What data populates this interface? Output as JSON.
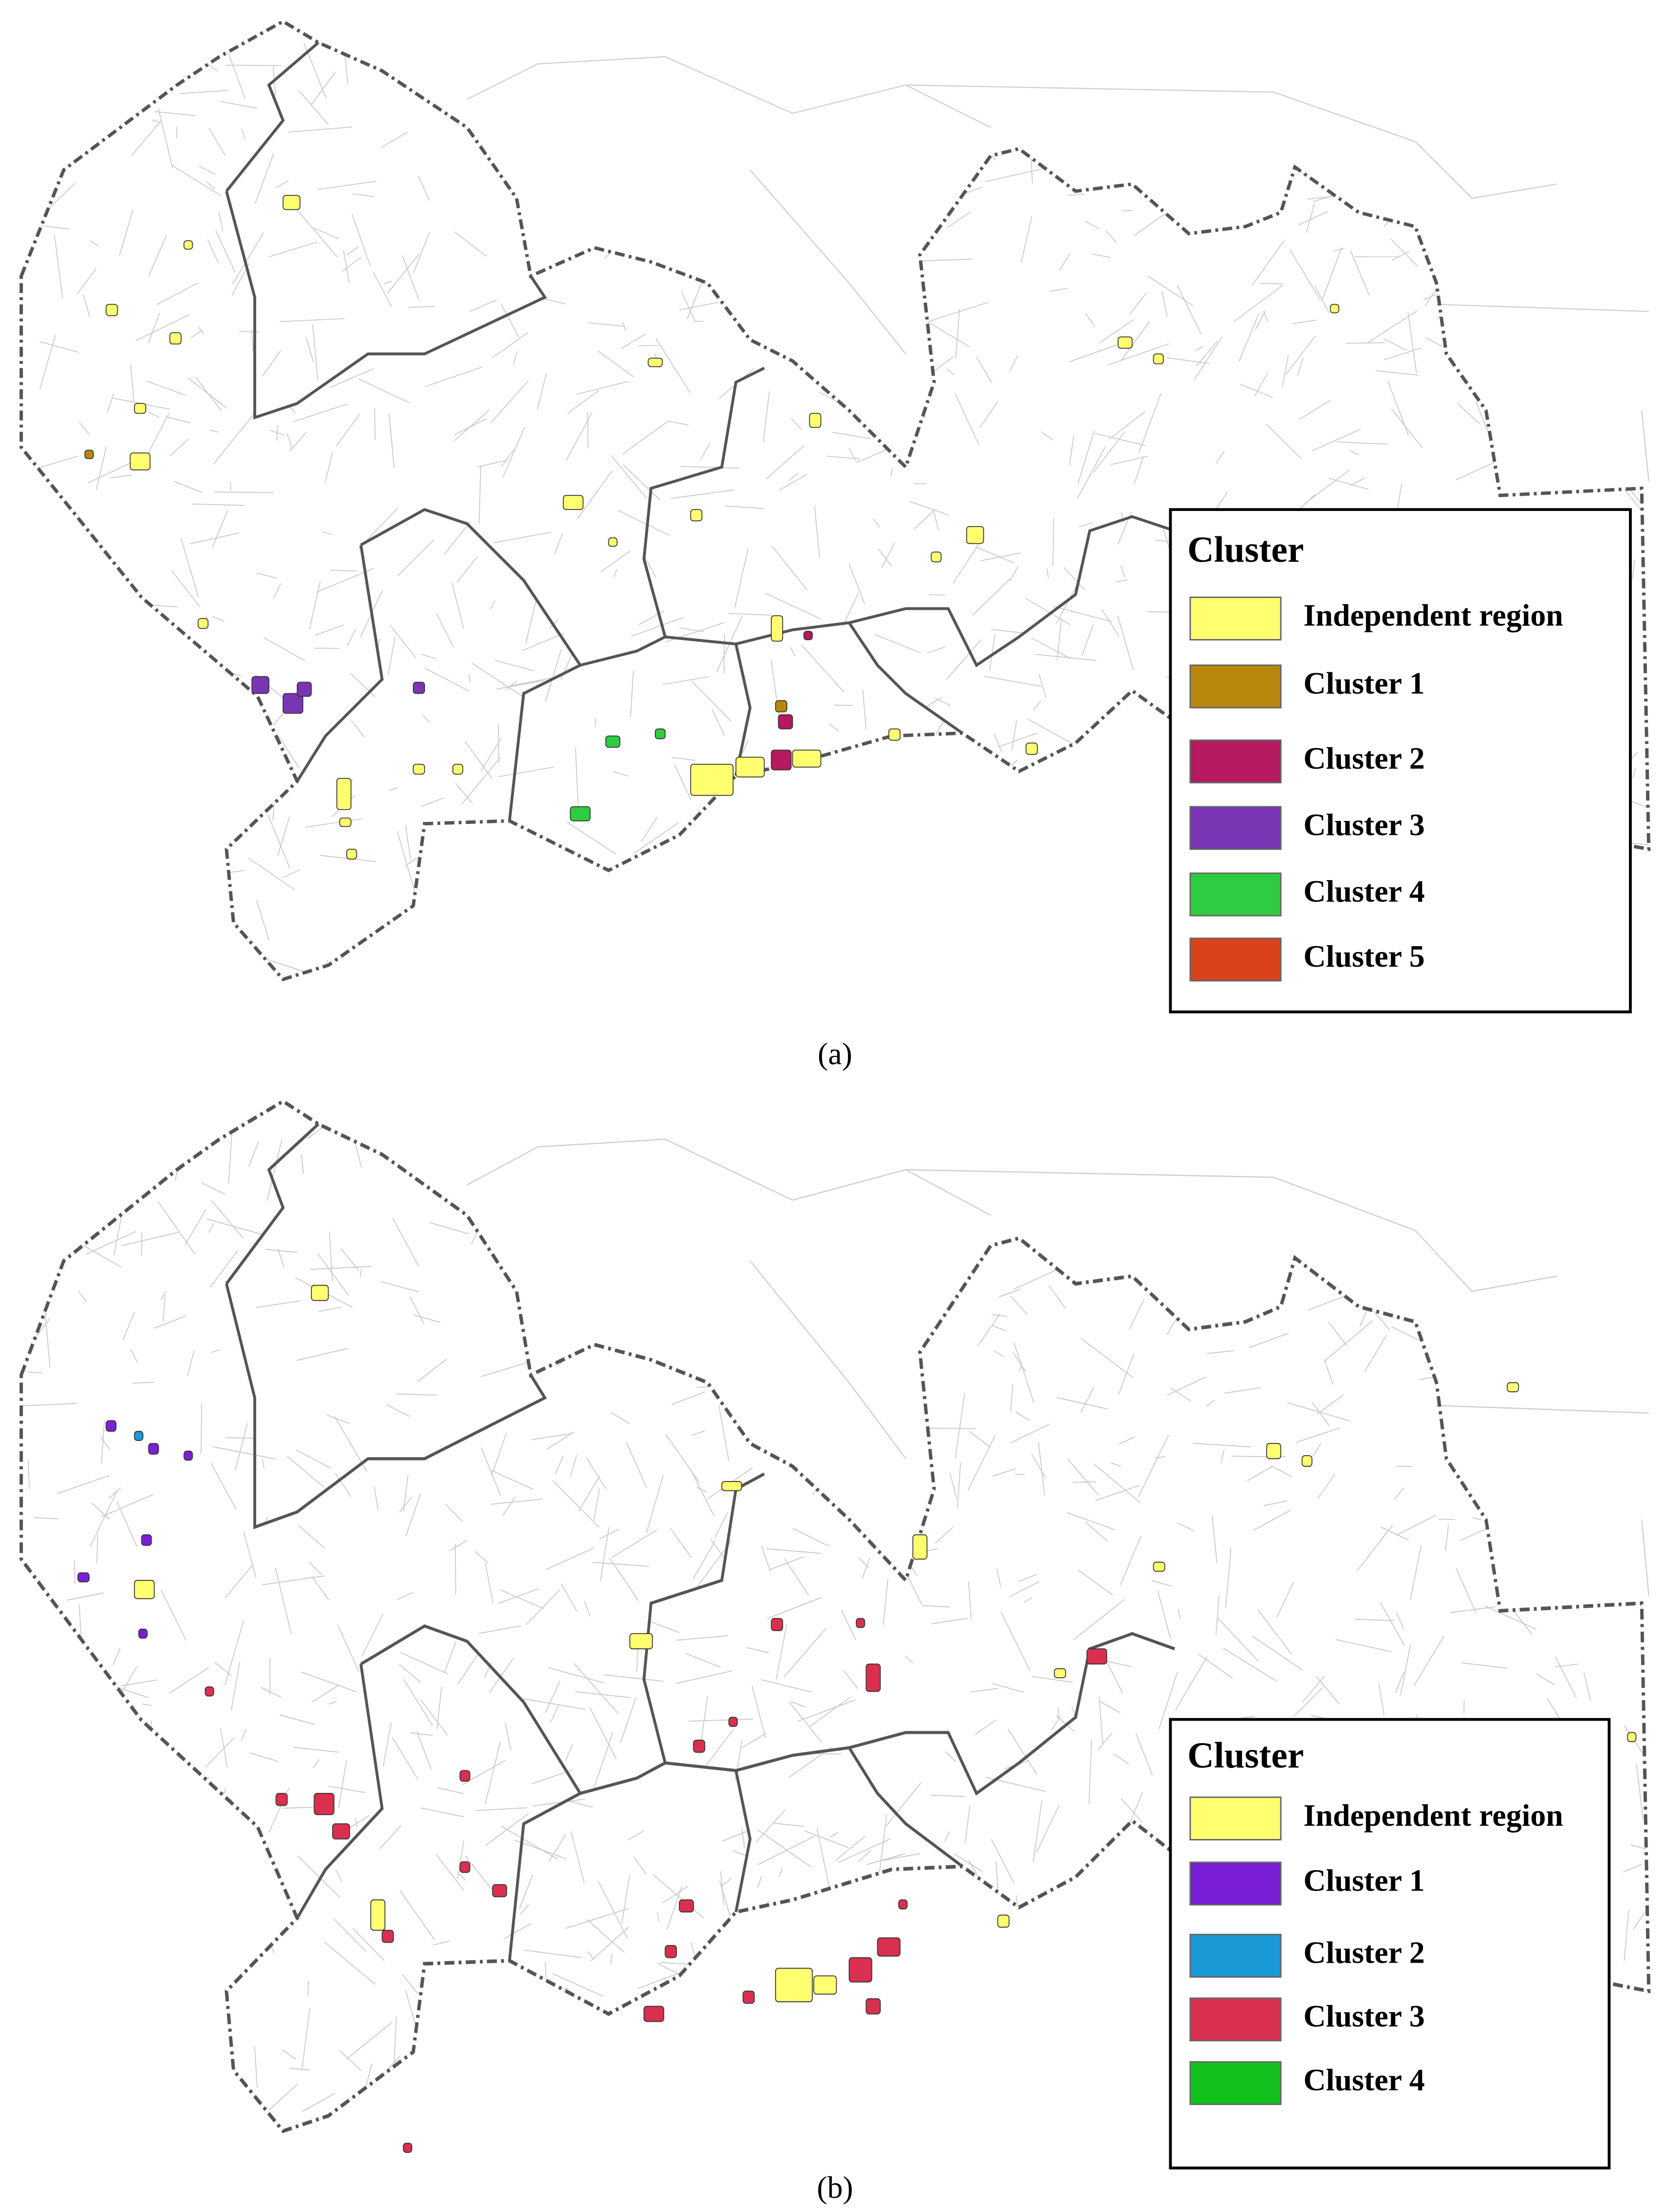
{
  "panels": [
    {
      "caption": "(a)",
      "legend": {
        "title": "Cluster",
        "items": [
          {
            "label": "Independent region",
            "color": "#ffff70"
          },
          {
            "label": "Cluster 1",
            "color": "#b8860b"
          },
          {
            "label": "Cluster 2",
            "color": "#b5195f"
          },
          {
            "label": "Cluster 3",
            "color": "#7a35b5"
          },
          {
            "label": "Cluster 4",
            "color": "#2ecc40"
          },
          {
            "label": "Cluster 5",
            "color": "#d9421b"
          }
        ]
      }
    },
    {
      "caption": "(b)",
      "legend": {
        "title": "Cluster",
        "items": [
          {
            "label": "Independent region",
            "color": "#ffff70"
          },
          {
            "label": "Cluster 1",
            "color": "#7a1fd6"
          },
          {
            "label": "Cluster 2",
            "color": "#1a9ad6"
          },
          {
            "label": "Cluster 3",
            "color": "#d9304f"
          },
          {
            "label": "Cluster 4",
            "color": "#12c21c"
          }
        ]
      }
    }
  ]
}
